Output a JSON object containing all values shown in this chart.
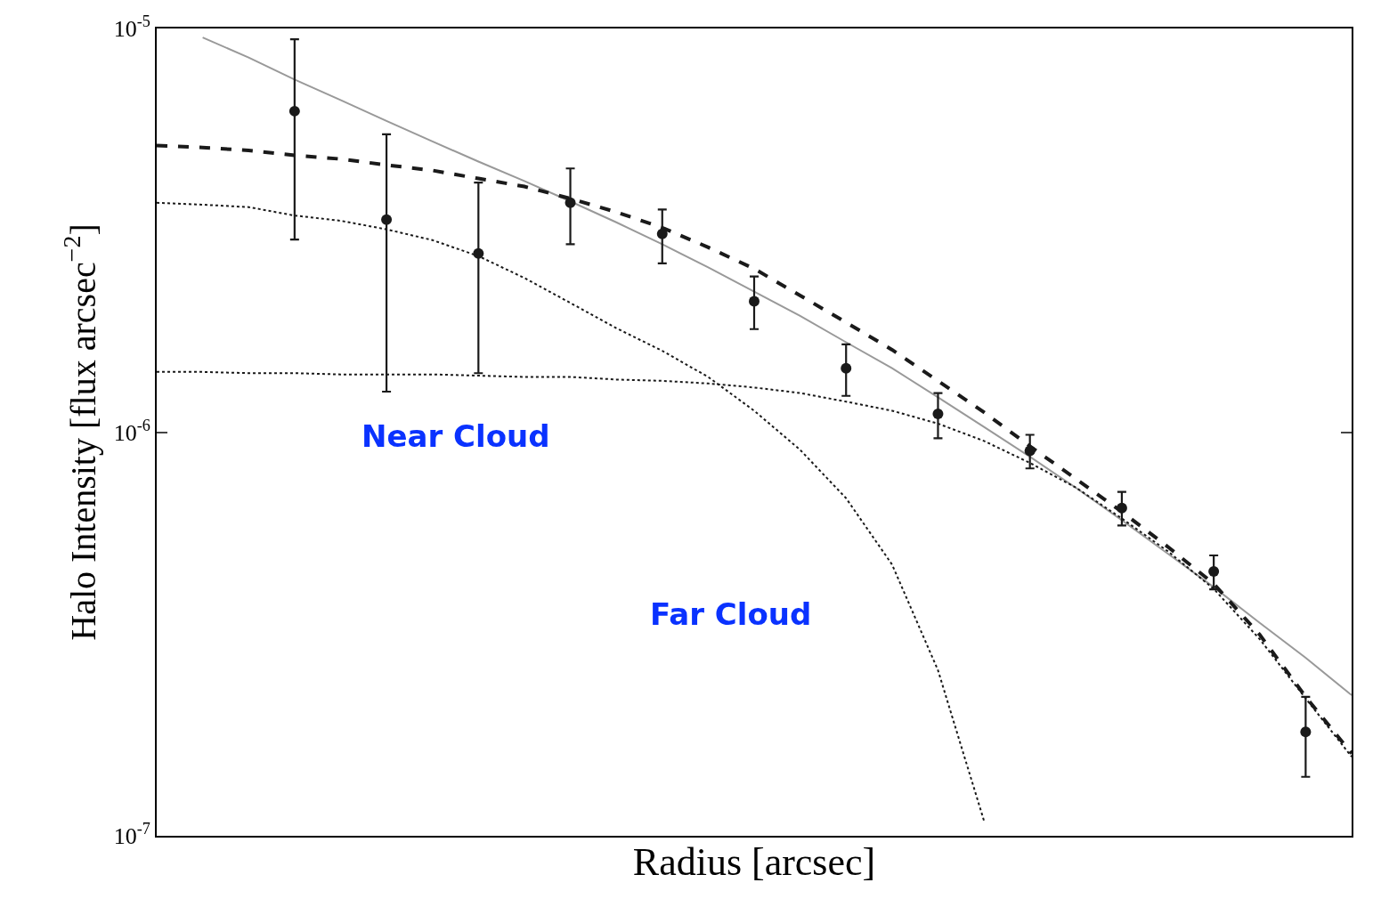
{
  "chart_data": {
    "type": "line",
    "xlabel": "Radius [arcsec]",
    "ylabel": "Halo Intensity [flux arcsec$^{−2}$]",
    "categories": [
      null,
      null,
      null,
      null,
      null,
      null,
      null,
      null,
      null,
      null,
      null,
      null,
      null,
      null,
      null,
      null,
      null,
      null,
      null,
      null,
      null,
      null,
      null,
      null,
      null,
      null,
      null
    ],
    "log": "y",
    "ylim": [
      1e-07,
      1e-05
    ],
    "yticks": [
      {
        "value": 1e-07,
        "label": "10$^{-7}$"
      },
      {
        "value": 1e-06,
        "label": "10$^{-6}$"
      },
      {
        "value": 1e-05,
        "label": "10$^{-5}$"
      }
    ],
    "annotations": [
      "Near Cloud",
      "Far Cloud"
    ],
    "series": [
      {
        "color": "#999999",
        "line_style": "solid",
        "marker": "none",
        "values": [
          null,
          9.5e-06,
          8.47e-06,
          7.47e-06,
          6.65e-06,
          5.9e-06,
          5.25e-06,
          4.68e-06,
          4.19e-06,
          3.73e-06,
          3.31e-06,
          2.92e-06,
          2.56e-06,
          2.23e-06,
          1.94e-06,
          1.67e-06,
          1.44e-06,
          1.22e-06,
          1.03e-06,
          8.69e-07,
          7.28e-07,
          6.05e-07,
          5e-07,
          4.13e-07,
          3.37e-07,
          2.76e-07,
          2.23e-07
        ]
      },
      {
        "color": "#1a1a1a",
        "line_style": "dotted",
        "marker": "none",
        "values": [
          3.7e-06,
          3.66e-06,
          3.61e-06,
          3.44e-06,
          3.34e-06,
          3.18e-06,
          2.99e-06,
          2.73e-06,
          2.41e-06,
          2.09e-06,
          1.81e-06,
          1.59e-06,
          1.37e-06,
          1.13e-06,
          9.04e-07,
          6.86e-07,
          4.7e-07,
          2.57e-07,
          1.09e-07,
          null,
          null,
          null,
          null,
          null,
          null,
          null,
          null
        ]
      },
      {
        "color": "#1a1a1a",
        "line_style": "dotted",
        "marker": "none",
        "values": [
          1.41e-06,
          1.41e-06,
          1.4e-06,
          1.4e-06,
          1.39e-06,
          1.39e-06,
          1.39e-06,
          1.38e-06,
          1.37e-06,
          1.37e-06,
          1.35e-06,
          1.34e-06,
          1.32e-06,
          1.29e-06,
          1.25e-06,
          1.19e-06,
          1.13e-06,
          1.05e-06,
          9.51e-07,
          8.39e-07,
          7.29e-07,
          6.11e-07,
          5.07e-07,
          4.09e-07,
          3.07e-07,
          2.19e-07,
          1.57e-07
        ]
      },
      {
        "color": "#1a1a1a",
        "line_style": "dashed",
        "marker": "none",
        "values": [
          5.13e-06,
          5.07e-06,
          4.99e-06,
          4.85e-06,
          4.75e-06,
          4.59e-06,
          4.45e-06,
          4.25e-06,
          4.06e-06,
          3.79e-06,
          3.51e-06,
          3.21e-06,
          2.87e-06,
          2.54e-06,
          2.18e-06,
          1.87e-06,
          1.6e-06,
          1.34e-06,
          1.12e-06,
          9.23e-07,
          7.66e-07,
          6.35e-07,
          5.2e-07,
          4.21e-07,
          3.15e-07,
          2.21e-07,
          1.6e-07
        ]
      },
      {
        "type": "scatter",
        "color": "#1a1a1a",
        "marker": "circle",
        "values": [
          null,
          null,
          null,
          6.24e-06,
          null,
          3.36e-06,
          null,
          2.77e-06,
          null,
          3.7e-06,
          null,
          3.1e-06,
          null,
          2.11e-06,
          null,
          1.44e-06,
          null,
          1.11e-06,
          null,
          8.99e-07,
          null,
          6.49e-07,
          null,
          4.52e-07,
          null,
          1.81e-07,
          null
        ],
        "errors": [
          null,
          null,
          null,
          [
            3e-06,
            9.4e-06
          ],
          null,
          [
            1.26e-06,
            5.47e-06
          ],
          null,
          [
            1.4e-06,
            4.15e-06
          ],
          null,
          [
            2.92e-06,
            4.5e-06
          ],
          null,
          [
            2.62e-06,
            3.56e-06
          ],
          null,
          [
            1.8e-06,
            2.43e-06
          ],
          null,
          [
            1.23e-06,
            1.65e-06
          ],
          null,
          [
            9.66e-07,
            1.25e-06
          ],
          null,
          [
            8.13e-07,
            9.85e-07
          ],
          null,
          [
            5.87e-07,
            7.11e-07
          ],
          null,
          [
            4.08e-07,
            4.95e-07
          ],
          null,
          [
            1.4e-07,
            2.21e-07
          ],
          null
        ]
      }
    ]
  }
}
